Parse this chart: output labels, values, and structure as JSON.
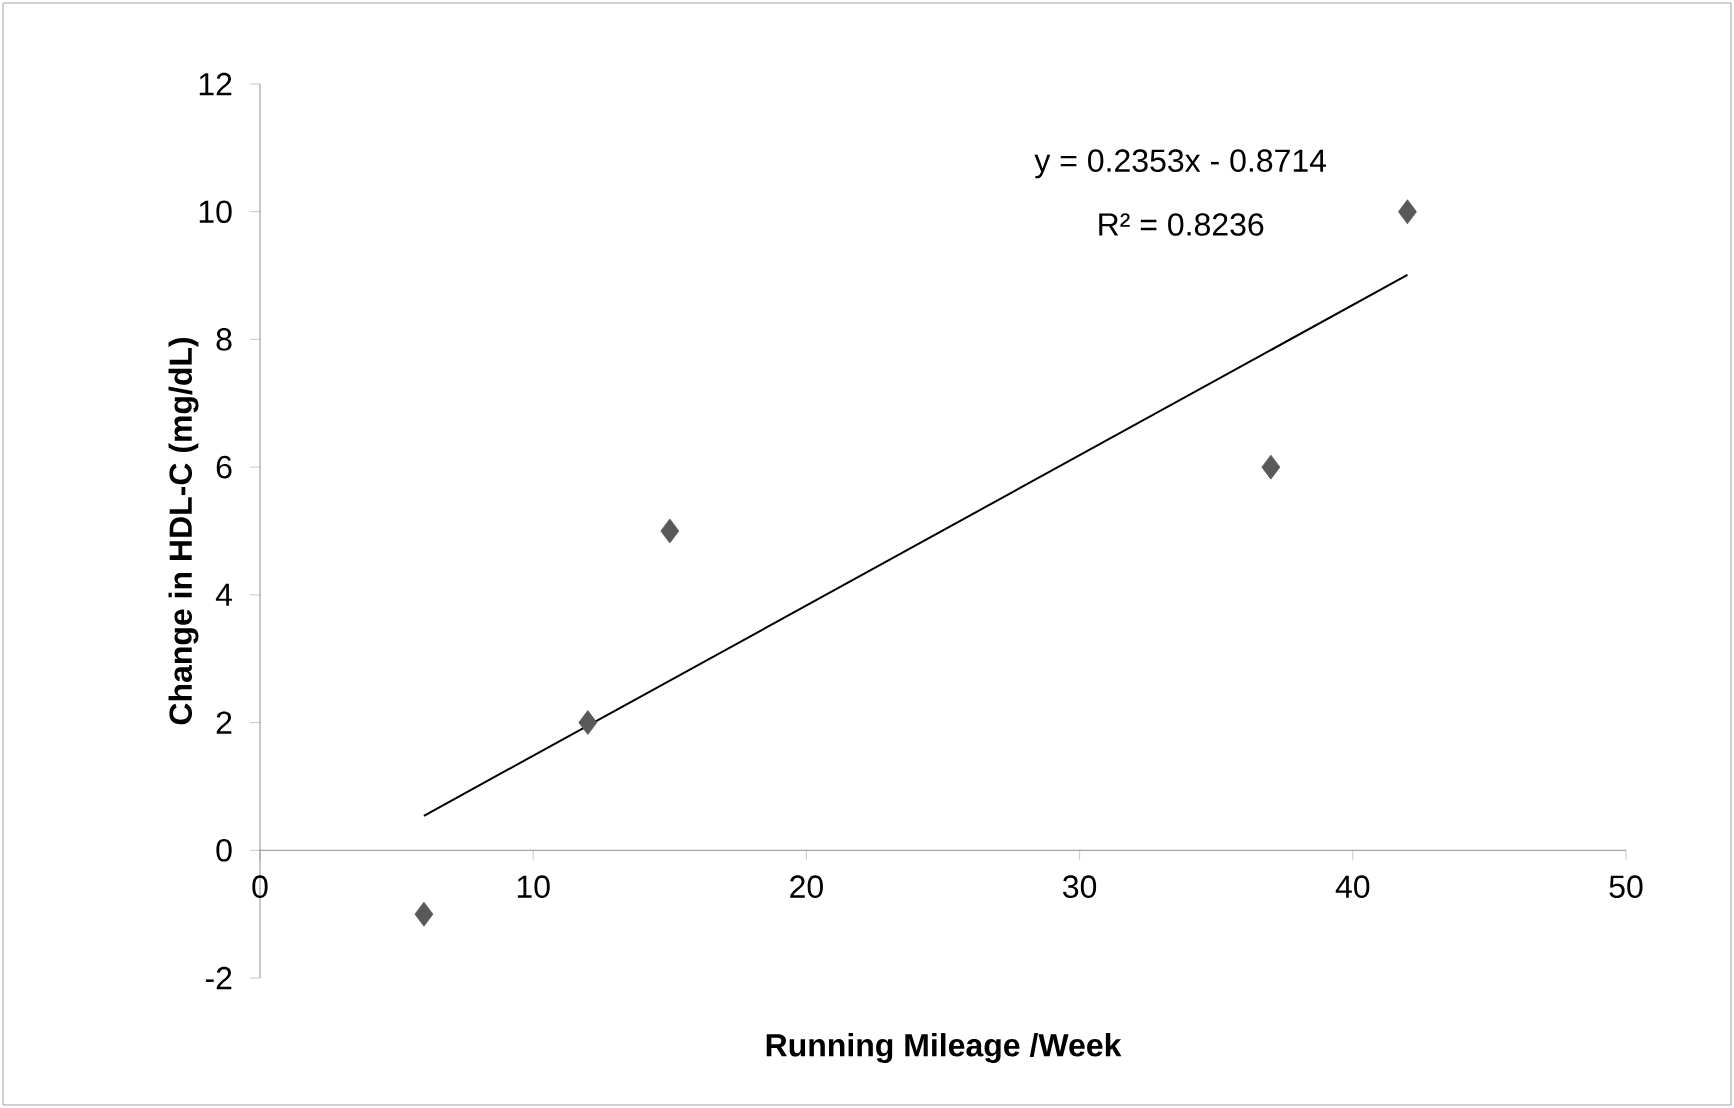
{
  "chart_data": {
    "type": "scatter",
    "xlabel": "Running Mileage /Week",
    "ylabel": "Change in HDL-C (mg/dL)",
    "x": [
      6,
      12,
      15,
      37,
      42
    ],
    "series": [
      {
        "color": "#595959",
        "values": [
          -1,
          2,
          5,
          6,
          10
        ],
        "marker": "diamond"
      },
      {
        "type": "line",
        "x": [
          6,
          42
        ],
        "values": [
          0.54,
          9.01
        ],
        "color": "#000000",
        "marker": "none",
        "line_style": "solid"
      }
    ],
    "annotations": [
      "y = 0.2353x - 0.8714",
      "R² = 0.8236"
    ],
    "xlim": [
      0,
      50
    ],
    "xticks": [
      0,
      10,
      20,
      30,
      40,
      50
    ],
    "ylim": [
      -2,
      12
    ],
    "yticks": [
      -2,
      0,
      2,
      4,
      6,
      8,
      10,
      12
    ],
    "grid": false
  }
}
